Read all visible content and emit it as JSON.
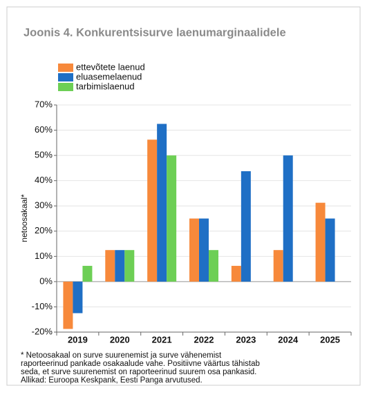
{
  "chart_data": {
    "type": "bar",
    "title": "Joonis 4. Konkurentsisurve laenumarginaalidele",
    "y_label": "netoosakaal*",
    "categories": [
      "2019",
      "2020",
      "2021",
      "2022",
      "2023",
      "2024",
      "2025"
    ],
    "series": [
      {
        "name": "ettevõtete laenud",
        "color": "#f7893b",
        "values": [
          -18.75,
          12.5,
          56.25,
          25,
          6.25,
          12.5,
          31.25
        ]
      },
      {
        "name": "eluasemelaenud",
        "color": "#1f6fc5",
        "values": [
          -12.5,
          12.5,
          62.5,
          25,
          43.75,
          50,
          25
        ]
      },
      {
        "name": "tarbimislaenud",
        "color": "#6dcf55",
        "values": [
          6.25,
          12.5,
          50,
          12.5,
          null,
          null,
          null
        ]
      }
    ],
    "ylim": [
      -20,
      70
    ],
    "yticks": [
      {
        "value": -20,
        "label": "-20%"
      },
      {
        "value": -10,
        "label": "-10%"
      },
      {
        "value": 0,
        "label": "0%"
      },
      {
        "value": 10,
        "label": "10%"
      },
      {
        "value": 20,
        "label": "20%"
      },
      {
        "value": 30,
        "label": "30%"
      },
      {
        "value": 40,
        "label": "40%"
      },
      {
        "value": 50,
        "label": "50%"
      },
      {
        "value": 60,
        "label": "60%"
      },
      {
        "value": 70,
        "label": "70%"
      }
    ],
    "grid": true,
    "legend": "top-left",
    "footnote": [
      "* Netoosakaal on surve suurenemist ja surve vähenemist",
      "raporteerinud pankade osakaalude vahe. Positiivne väärtus tähistab",
      "seda, et surve suurenemist on raporteerinud suurem osa pankasid.",
      "Allikad: Euroopa Keskpank, Eesti Panga arvutused."
    ]
  }
}
